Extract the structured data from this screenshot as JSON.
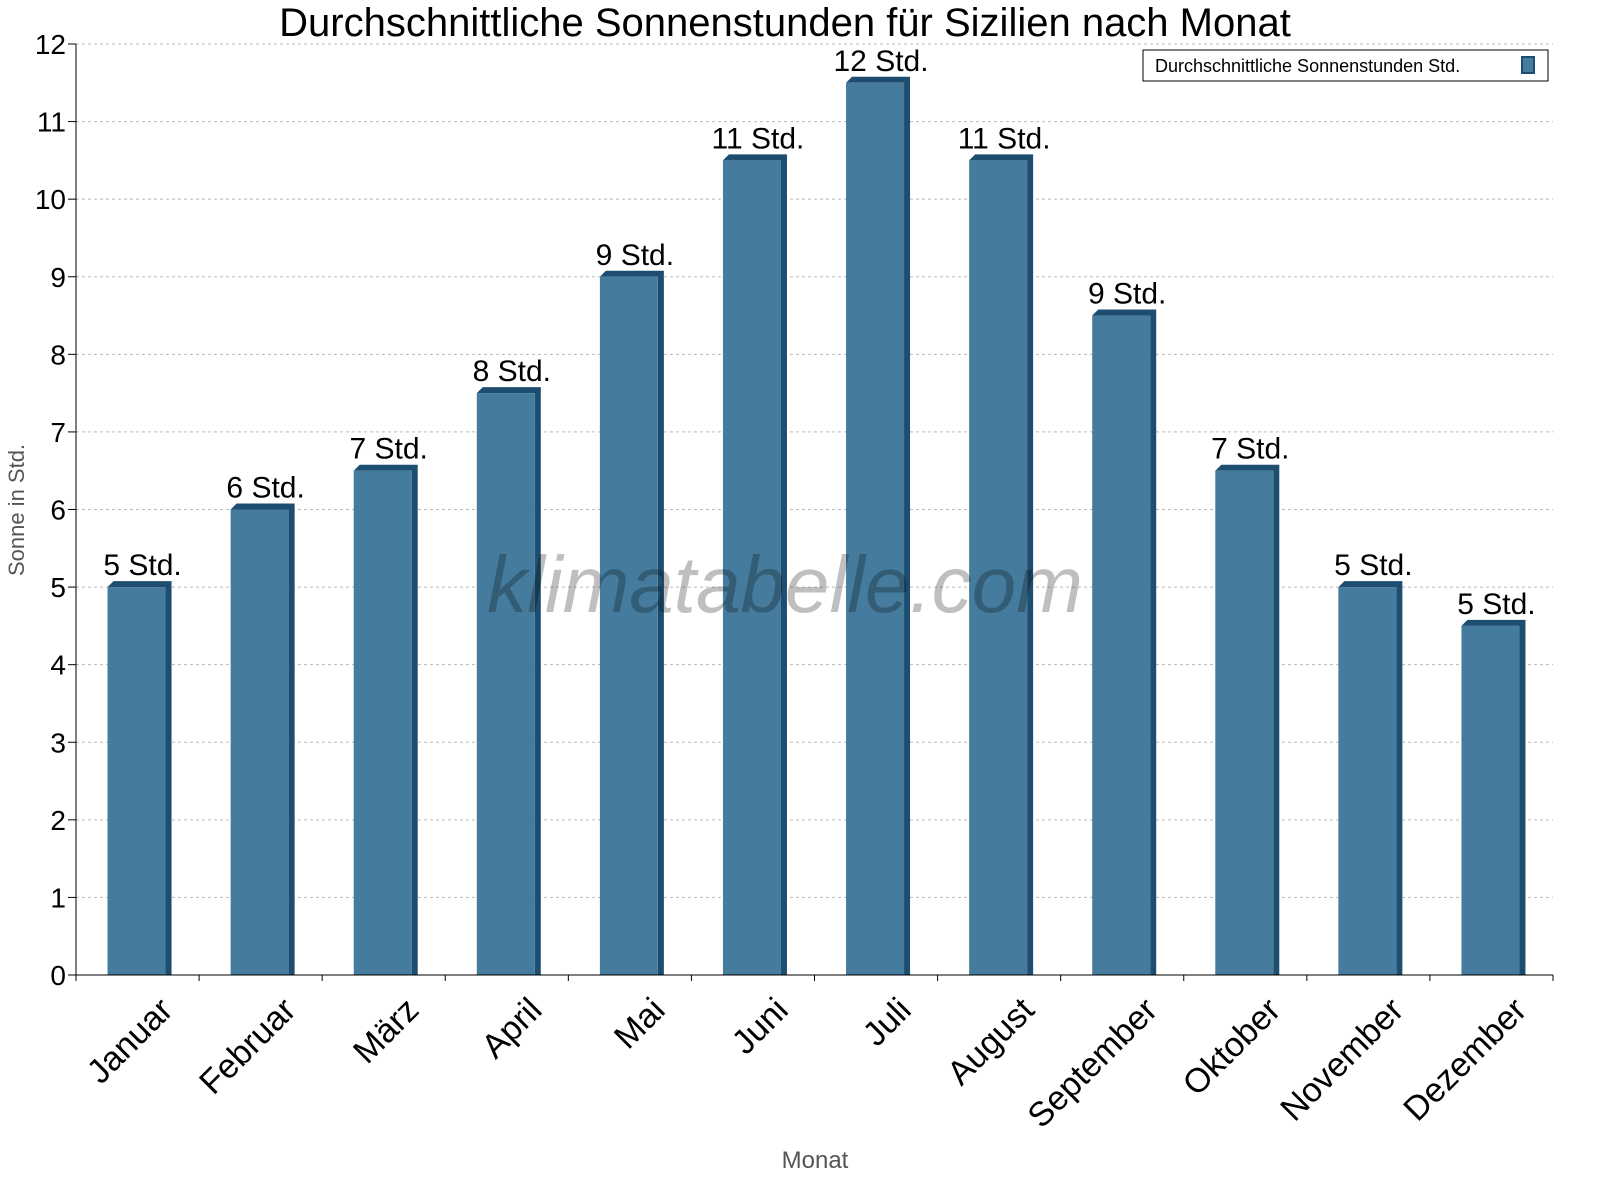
{
  "chart_data": {
    "type": "bar",
    "title": "Durchschnittliche Sonnenstunden für Sizilien nach Monat",
    "xlabel": "Monat",
    "ylabel": "Sonne in Std.",
    "ylim": [
      0,
      12
    ],
    "yticks": [
      "0",
      "1",
      "2",
      "3",
      "4",
      "5",
      "6",
      "7",
      "8",
      "9",
      "10",
      "11",
      "12"
    ],
    "grid": true,
    "legend_placement": "top-right",
    "categories": [
      "Januar",
      "Februar",
      "März",
      "April",
      "Mai",
      "Juni",
      "Juli",
      "August",
      "September",
      "Oktober",
      "November",
      "Dezember"
    ],
    "series": [
      {
        "name": "Durchschnittliche Sonnenstunden Std.",
        "values": [
          5,
          6,
          6.5,
          7.5,
          9,
          10.5,
          11.5,
          10.5,
          8.5,
          6.5,
          5,
          4.5
        ],
        "labels": [
          "5 Std.",
          "6 Std.",
          "7 Std.",
          "8 Std.",
          "9 Std.",
          "11 Std.",
          "12 Std.",
          "11 Std.",
          "9 Std.",
          "7 Std.",
          "5 Std.",
          "5 Std."
        ]
      }
    ],
    "colors": {
      "bar": "#457b9d",
      "bar_dark": "#1d4e70",
      "grid": "#bbbbbb"
    },
    "watermark": "klimatabelle.com"
  }
}
